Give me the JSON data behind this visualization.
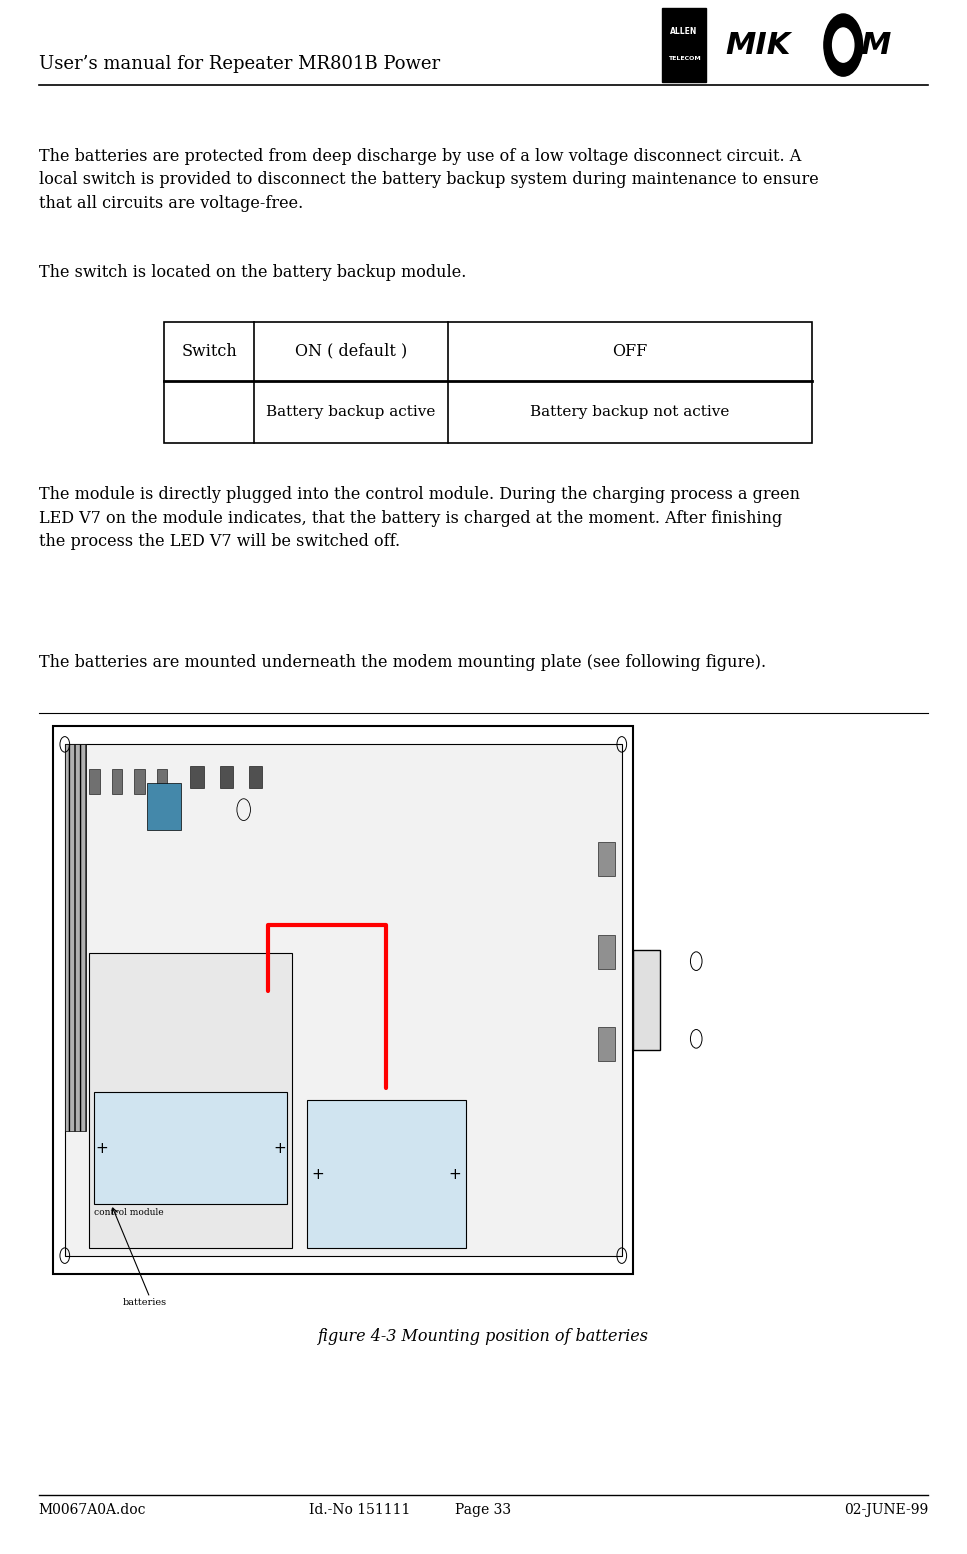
{
  "page_width": 9.67,
  "page_height": 15.54,
  "bg_color": "#ffffff",
  "header_title": "User’s manual for Repeater MR801B Power",
  "header_title_fontsize": 13,
  "footer_left": "M0067A0A.doc",
  "footer_center_left": "Id.-No 151111",
  "footer_center": "Page 33",
  "footer_right": "02-JUNE-99",
  "footer_fontsize": 10,
  "para1": "The batteries are protected from deep discharge by use of a low voltage disconnect circuit. A\nlocal switch is provided to disconnect the battery backup system during maintenance to ensure\nthat all circuits are voltage-free.",
  "para2": "The switch is located on the battery backup module.",
  "table_col_headers": [
    "Switch",
    "ON ( default )",
    "OFF"
  ],
  "table_row2": [
    "",
    "Battery backup active",
    "Battery backup not active"
  ],
  "para3": "The module is directly plugged into the control module. During the charging process a green\nLED V7 on the module indicates, that the battery is charged at the moment. After finishing\nthe process the LED V7 will be switched off.",
  "para4": "The batteries are mounted underneath the modem mounting plate (see following figure).",
  "fig_caption": "figure 4-3 Mounting position of batteries",
  "body_fontsize": 11.5,
  "caption_fontsize": 11.5
}
